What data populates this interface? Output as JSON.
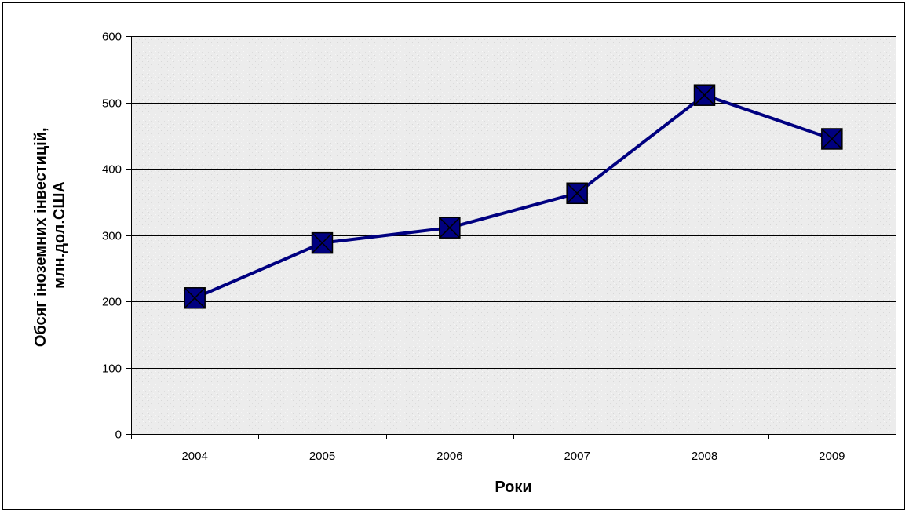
{
  "chart_data": {
    "type": "line",
    "categories": [
      "2004",
      "2005",
      "2006",
      "2007",
      "2008",
      "2009"
    ],
    "series": [
      {
        "values": [
          205,
          288,
          311,
          363,
          511,
          445
        ],
        "color": "#000080",
        "marker": "square-x"
      }
    ],
    "xlabel": "Роки",
    "ylabel_lines": [
      "Обсяг іноземних інвестицій,",
      "млн.дол.США"
    ],
    "ylim": [
      0,
      600
    ],
    "yticks": [
      0,
      100,
      200,
      300,
      400,
      500,
      600
    ],
    "grid": true,
    "legend": "none",
    "plot_background": "#ececec",
    "gridline_color": "#000000"
  }
}
